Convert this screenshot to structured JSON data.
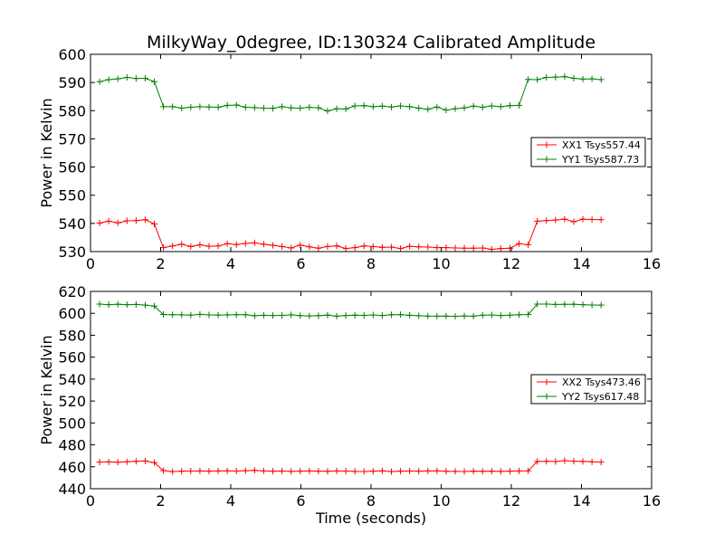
{
  "chart_data": [
    {
      "type": "line",
      "title": "MilkyWay_0degree, ID:130324 Calibrated Amplitude",
      "xlabel": "",
      "ylabel": "Power in Kelvin",
      "xlim": [
        0,
        16
      ],
      "ylim": [
        530,
        600
      ],
      "xticks": [
        "0",
        "2",
        "4",
        "6",
        "8",
        "10",
        "12",
        "14",
        "16"
      ],
      "yticks": [
        "530",
        "540",
        "550",
        "560",
        "570",
        "580",
        "590",
        "600"
      ],
      "grid": false,
      "legend_position": "right",
      "x": [
        0.26,
        0.52,
        0.78,
        1.04,
        1.3,
        1.56,
        1.82,
        2.08,
        2.34,
        2.6,
        2.86,
        3.12,
        3.38,
        3.64,
        3.9,
        4.16,
        4.42,
        4.68,
        4.94,
        5.2,
        5.46,
        5.72,
        5.98,
        6.24,
        6.5,
        6.76,
        7.02,
        7.28,
        7.54,
        7.8,
        8.06,
        8.32,
        8.58,
        8.84,
        9.1,
        9.36,
        9.62,
        9.88,
        10.14,
        10.4,
        10.66,
        10.92,
        11.18,
        11.44,
        11.7,
        11.96,
        12.22,
        12.48,
        12.74,
        13.0,
        13.26,
        13.52,
        13.78,
        14.04,
        14.3,
        14.56
      ],
      "series": [
        {
          "name": "XX1 Tsys557.44",
          "color": "#ff0000",
          "values": [
            540.1,
            540.8,
            540.2,
            540.9,
            541.0,
            541.3,
            539.8,
            531.4,
            532.0,
            532.6,
            531.8,
            532.4,
            531.9,
            532.0,
            532.8,
            532.5,
            532.9,
            533.1,
            532.6,
            532.2,
            531.8,
            531.3,
            532.3,
            531.7,
            531.2,
            531.8,
            532.0,
            531.1,
            531.4,
            532.0,
            531.8,
            531.5,
            531.6,
            531.1,
            531.9,
            531.7,
            531.6,
            531.4,
            531.4,
            531.3,
            531.2,
            531.2,
            531.3,
            530.8,
            531.1,
            531.2,
            532.8,
            532.4,
            540.8,
            541.0,
            541.2,
            541.5,
            540.6,
            541.5,
            541.4,
            541.3
          ]
        },
        {
          "name": "YY1 Tsys587.73",
          "color": "#008000",
          "values": [
            590.3,
            591.0,
            591.3,
            591.8,
            591.4,
            591.5,
            590.3,
            581.4,
            581.4,
            580.9,
            581.2,
            581.4,
            581.3,
            581.2,
            581.9,
            582.0,
            581.2,
            581.1,
            580.9,
            580.8,
            581.4,
            581.0,
            580.9,
            581.2,
            581.0,
            579.9,
            580.7,
            580.6,
            581.7,
            581.8,
            581.4,
            581.6,
            581.3,
            581.7,
            581.4,
            580.9,
            580.5,
            581.3,
            580.2,
            580.7,
            581.0,
            581.6,
            581.2,
            581.7,
            581.4,
            581.8,
            581.9,
            591.1,
            591.0,
            591.8,
            591.9,
            592.1,
            591.5,
            591.2,
            591.3,
            591.0
          ]
        }
      ]
    },
    {
      "type": "line",
      "title": "",
      "xlabel": "Time (seconds)",
      "ylabel": "Power in Kelvin",
      "xlim": [
        0,
        16
      ],
      "ylim": [
        440,
        620
      ],
      "xticks": [
        "0",
        "2",
        "4",
        "6",
        "8",
        "10",
        "12",
        "14",
        "16"
      ],
      "yticks": [
        "440",
        "460",
        "480",
        "500",
        "520",
        "540",
        "560",
        "580",
        "600",
        "620"
      ],
      "grid": false,
      "legend_position": "right",
      "x": [
        0.26,
        0.52,
        0.78,
        1.04,
        1.3,
        1.56,
        1.82,
        2.08,
        2.34,
        2.6,
        2.86,
        3.12,
        3.38,
        3.64,
        3.9,
        4.16,
        4.42,
        4.68,
        4.94,
        5.2,
        5.46,
        5.72,
        5.98,
        6.24,
        6.5,
        6.76,
        7.02,
        7.28,
        7.54,
        7.8,
        8.06,
        8.32,
        8.58,
        8.84,
        9.1,
        9.36,
        9.62,
        9.88,
        10.14,
        10.4,
        10.66,
        10.92,
        11.18,
        11.44,
        11.7,
        11.96,
        12.22,
        12.48,
        12.74,
        13.0,
        13.26,
        13.52,
        13.78,
        14.04,
        14.3,
        14.56
      ],
      "series": [
        {
          "name": "XX2 Tsys473.46",
          "color": "#ff0000",
          "values": [
            464.3,
            464.5,
            464.2,
            464.6,
            465.0,
            465.3,
            463.8,
            456.5,
            455.6,
            456.0,
            456.1,
            456.2,
            456.0,
            456.2,
            456.3,
            456.1,
            456.4,
            456.8,
            456.2,
            456.0,
            456.1,
            455.8,
            456.0,
            456.2,
            456.0,
            455.9,
            456.2,
            456.1,
            455.8,
            455.7,
            456.0,
            456.3,
            455.6,
            456.0,
            456.1,
            456.0,
            456.2,
            456.3,
            455.9,
            455.8,
            455.7,
            456.0,
            455.9,
            456.0,
            455.8,
            456.0,
            456.2,
            456.3,
            464.9,
            465.0,
            464.8,
            465.6,
            465.1,
            464.9,
            464.5,
            464.3
          ]
        },
        {
          "name": "YY2 Tsys617.48",
          "color": "#008000",
          "values": [
            608.4,
            607.9,
            608.3,
            607.9,
            608.1,
            607.5,
            606.6,
            598.9,
            598.7,
            598.6,
            598.4,
            599.0,
            598.5,
            598.4,
            598.6,
            598.7,
            598.8,
            597.8,
            598.2,
            598.0,
            598.1,
            598.6,
            597.9,
            597.6,
            597.9,
            598.4,
            597.4,
            598.0,
            598.3,
            598.1,
            598.5,
            598.0,
            598.7,
            598.8,
            598.2,
            597.8,
            597.5,
            597.4,
            597.5,
            597.3,
            597.6,
            597.4,
            598.3,
            598.5,
            598.0,
            598.3,
            598.7,
            598.9,
            608.4,
            608.4,
            608.1,
            608.2,
            608.3,
            607.9,
            607.6,
            607.5
          ]
        }
      ]
    }
  ]
}
